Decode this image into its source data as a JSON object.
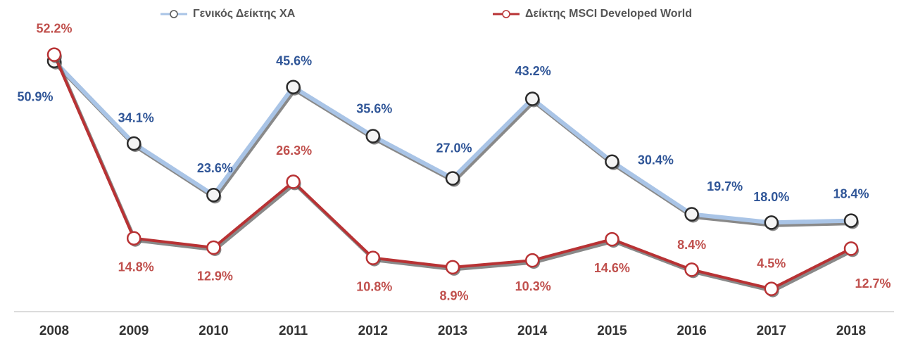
{
  "chart_data": {
    "type": "line",
    "categories": [
      "2008",
      "2009",
      "2010",
      "2011",
      "2012",
      "2013",
      "2014",
      "2015",
      "2016",
      "2017",
      "2018"
    ],
    "series": [
      {
        "name": "Γενικός Δείκτης ΧΑ",
        "color": "#a9c4e6",
        "label_color": "#2f5597",
        "values": [
          50.9,
          34.1,
          23.6,
          45.6,
          35.6,
          27.0,
          43.2,
          30.4,
          19.7,
          18.0,
          18.4
        ],
        "value_labels": [
          "50.9%",
          "34.1%",
          "23.6%",
          "45.6%",
          "35.6%",
          "27.0%",
          "43.2%",
          "30.4%",
          "19.7%",
          "18.0%",
          "18.4%"
        ]
      },
      {
        "name": "Δείκτης MSCI Developed World",
        "color": "#b83234",
        "label_color": "#c0504d",
        "values": [
          52.2,
          14.8,
          12.9,
          26.3,
          10.8,
          8.9,
          10.3,
          14.6,
          8.4,
          4.5,
          12.7
        ],
        "value_labels": [
          "52.2%",
          "14.8%",
          "12.9%",
          "26.3%",
          "10.8%",
          "8.9%",
          "10.3%",
          "14.6%",
          "8.4%",
          "4.5%",
          "12.7%"
        ]
      }
    ],
    "legend": "top"
  }
}
